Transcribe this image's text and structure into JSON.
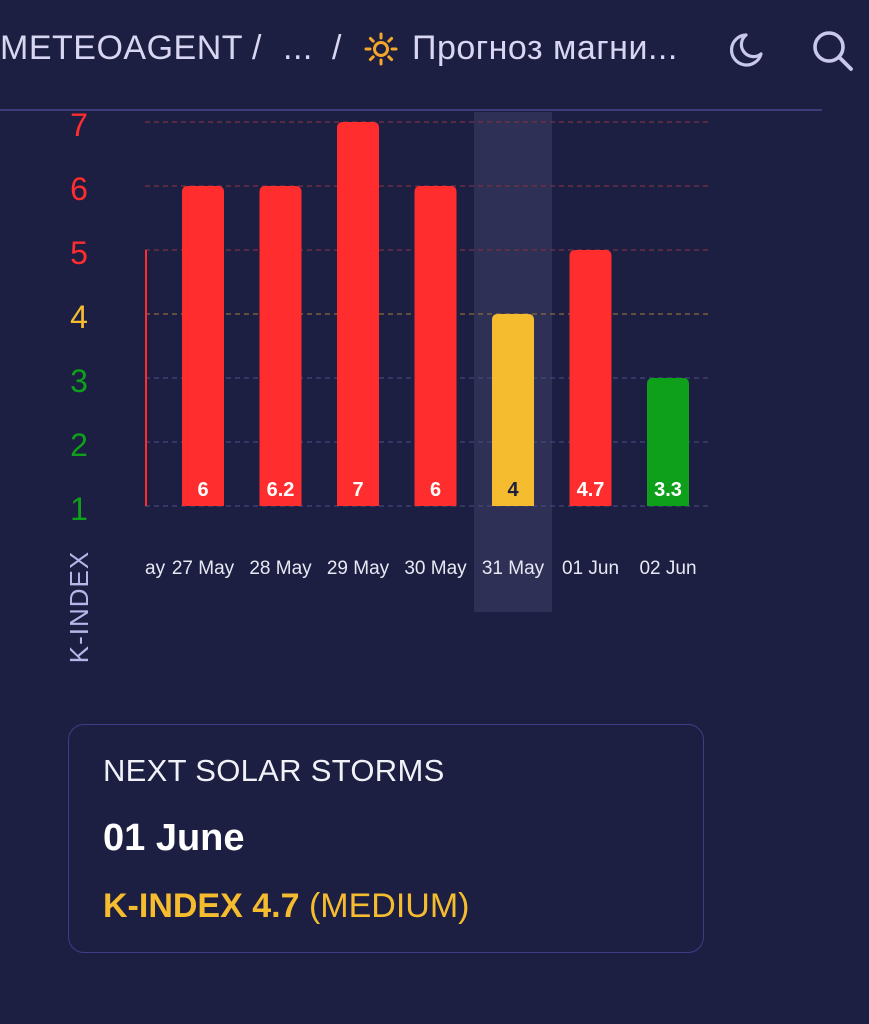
{
  "header": {
    "breadcrumb": [
      "METEOAGENT",
      "...",
      "Прогноз магни..."
    ],
    "separator": "/",
    "icons": {
      "sun": "sun-icon",
      "moon": "moon-icon",
      "search": "search-icon"
    },
    "colors": {
      "sun": "#f4a72a",
      "text": "#d8d6f2"
    }
  },
  "chart_data": {
    "type": "bar",
    "title": "",
    "ylabel": "K-INDEX",
    "xlabel": "",
    "ylim": [
      1,
      7
    ],
    "y_ticks": [
      {
        "value": 7,
        "label": "7",
        "color": "#ff2d2d"
      },
      {
        "value": 6,
        "label": "6",
        "color": "#ff2d2d"
      },
      {
        "value": 5,
        "label": "5",
        "color": "#ff2d2d"
      },
      {
        "value": 4,
        "label": "4",
        "color": "#f5bc30"
      },
      {
        "value": 3,
        "label": "3",
        "color": "#0ea01a"
      },
      {
        "value": 2,
        "label": "2",
        "color": "#0ea01a"
      },
      {
        "value": 1,
        "label": "1",
        "color": "#0ea01a"
      }
    ],
    "partial_category": "ay",
    "categories": [
      "27 May",
      "28 May",
      "29 May",
      "30 May",
      "31 May",
      "01 Jun",
      "02 Jun"
    ],
    "values": [
      6,
      6.2,
      7,
      6,
      4,
      4.7,
      3.3
    ],
    "value_labels": [
      "6",
      "6.2",
      "7",
      "6",
      "4",
      "4.7",
      "3.3"
    ],
    "bar_heights_on_scale": [
      6,
      6,
      7,
      6,
      4,
      5,
      3
    ],
    "bar_colors": [
      "#ff2d2d",
      "#ff2d2d",
      "#ff2d2d",
      "#ff2d2d",
      "#f5bc30",
      "#ff2d2d",
      "#0ea01a"
    ],
    "highlighted_category": "31 May",
    "grid": true,
    "colors": {
      "high": "#ff2d2d",
      "medium": "#f5bc30",
      "low": "#0ea01a",
      "grid_red": "#7a3044",
      "grid_yellow": "#8a6a38",
      "grid_blue": "#44487a",
      "highlight": "#2e3155",
      "axis_label": "#b8b6e8"
    }
  },
  "storm_card": {
    "title": "NEXT SOLAR STORMS",
    "date": "01 June",
    "index_label": "K-INDEX 4.7",
    "level": "(MEDIUM)"
  }
}
